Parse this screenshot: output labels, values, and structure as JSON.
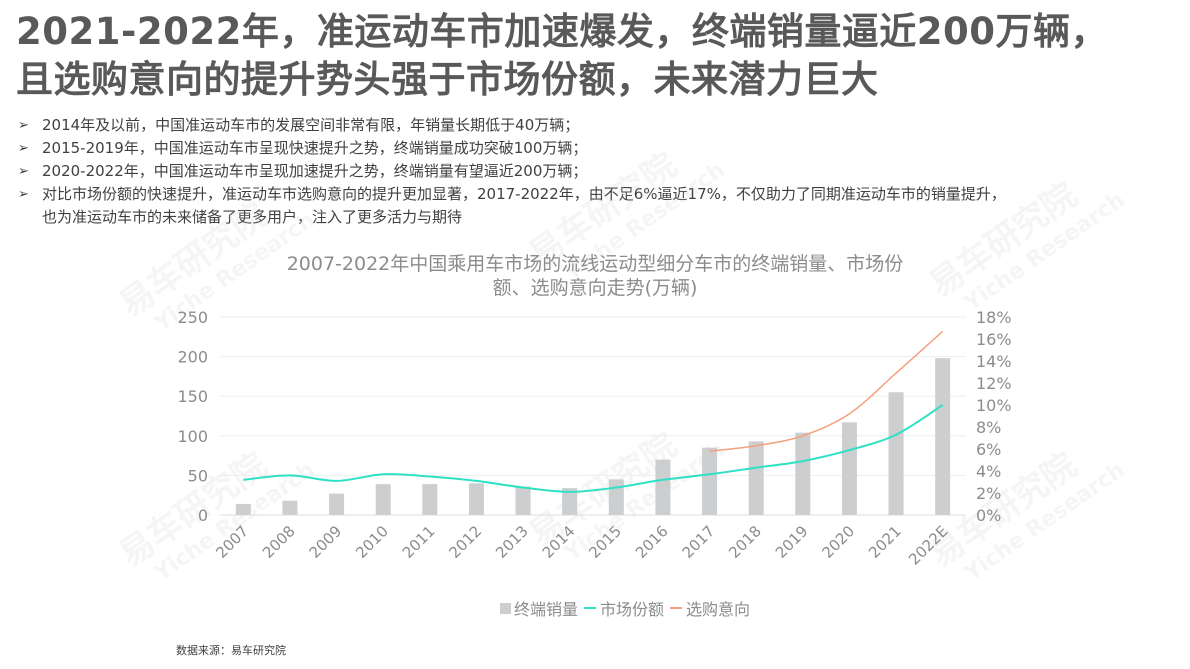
{
  "headline": {
    "line1": "2021-2022年，准运动车市加速爆发，终端销量逼近200万辆，",
    "line2": "且选购意向的提升势头强于市场份额，未来潜力巨大"
  },
  "bullets": [
    {
      "text": "2014年及以前，中国准运动车市的发展空间非常有限，年销量长期低于40万辆；"
    },
    {
      "text": "2015-2019年，中国准运动车市呈现快速提升之势，终端销量成功突破100万辆；"
    },
    {
      "text": "2020-2022年，中国准运动车市呈现加速提升之势，终端销量有望逼近200万辆；"
    },
    {
      "text": "对比市场份额的快速提升，准运动车市选购意向的提升更加显著，2017-2022年，由不足6%逼近17%，不仅助力了同期准运动车市的销量提升，",
      "continuation": "也为准运动车市的未来储备了更多用户，注入了更多活力与期待"
    }
  ],
  "bullet_icon": "arrowhead-bullet-icon",
  "chart": {
    "title_line1": "2007-2022年中国乘用车市场的流线运动型细分车市的终端销量、市场份",
    "title_line2": "额、选购意向走势(万辆)"
  },
  "legend": {
    "sales": "终端销量",
    "share": "市场份额",
    "intent": "选购意向"
  },
  "source": "数据来源：易车研究院",
  "watermark": {
    "cn": "易车研究院",
    "en": "Yiche Research"
  },
  "colors": {
    "bar": "#ccced0",
    "share_line": "#2ee0c4",
    "intent_line": "#f4a07e",
    "grid": "#eeeeee",
    "axis_text": "#8c8c8c"
  },
  "chart_data": {
    "type": "bar",
    "title": "2007-2022年中国乘用车市场的流线运动型细分车市的终端销量、市场份额、选购意向走势(万辆)",
    "categories": [
      "2007",
      "2008",
      "2009",
      "2010",
      "2011",
      "2012",
      "2013",
      "2014",
      "2015",
      "2016",
      "2017",
      "2018",
      "2019",
      "2020",
      "2021",
      "2022E"
    ],
    "series": [
      {
        "name": "终端销量",
        "type": "bar",
        "axis": "left",
        "unit": "万辆",
        "values": [
          14,
          18,
          27,
          39,
          39,
          40,
          36,
          34,
          45,
          70,
          85,
          93,
          104,
          117,
          155,
          198
        ]
      },
      {
        "name": "市场份额",
        "type": "line",
        "axis": "right",
        "unit": "%",
        "values": [
          3.2,
          3.6,
          3.1,
          3.7,
          3.5,
          3.1,
          2.5,
          2.1,
          2.5,
          3.2,
          3.7,
          4.3,
          4.9,
          5.9,
          7.3,
          10.0
        ]
      },
      {
        "name": "选购意向",
        "type": "line",
        "axis": "right",
        "unit": "%",
        "values": [
          null,
          null,
          null,
          null,
          null,
          null,
          null,
          null,
          null,
          null,
          5.8,
          6.3,
          7.2,
          9.2,
          12.9,
          16.7
        ]
      }
    ],
    "yaxis_left": {
      "min": 0,
      "max": 250,
      "ticks": [
        0,
        50,
        100,
        150,
        200,
        250
      ]
    },
    "yaxis_right": {
      "min": 0,
      "max": 18,
      "ticks": [
        "0%",
        "2%",
        "4%",
        "6%",
        "8%",
        "10%",
        "12%",
        "14%",
        "16%",
        "18%"
      ]
    },
    "xlabel": "",
    "ylabel": "",
    "grid": true,
    "legend_position": "bottom"
  }
}
